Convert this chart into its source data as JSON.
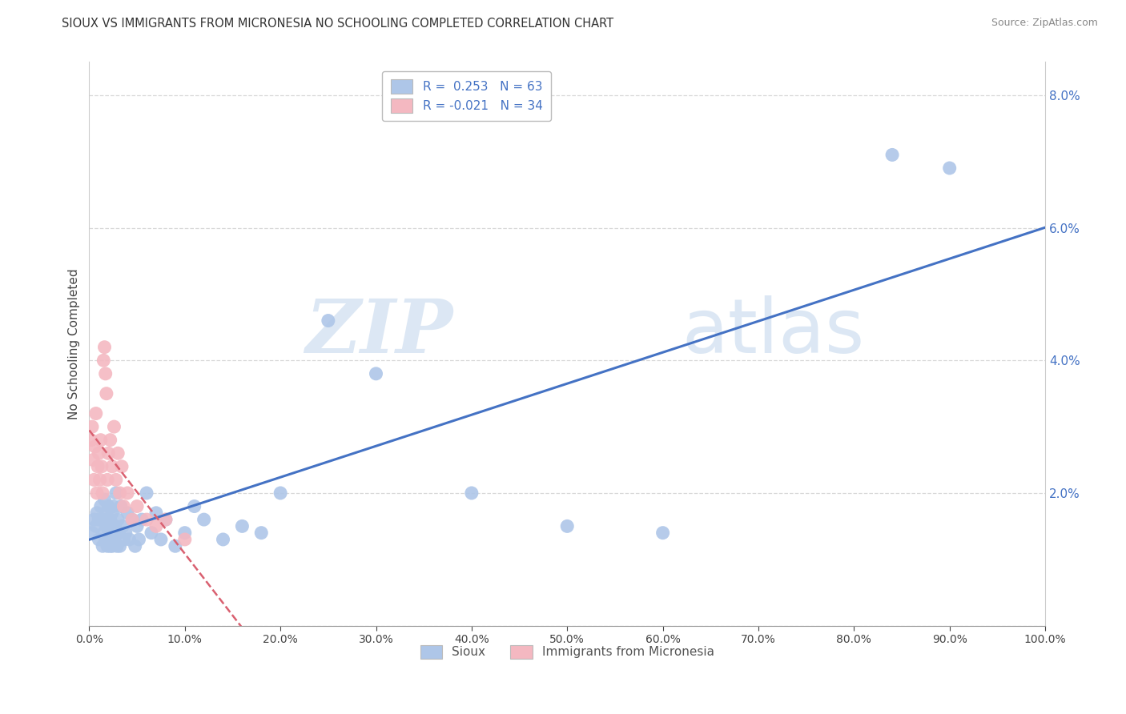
{
  "title": "SIOUX VS IMMIGRANTS FROM MICRONESIA NO SCHOOLING COMPLETED CORRELATION CHART",
  "source": "Source: ZipAtlas.com",
  "ylabel": "No Schooling Completed",
  "xlim": [
    0,
    1.0
  ],
  "ylim": [
    0,
    0.085
  ],
  "xticks": [
    0.0,
    0.1,
    0.2,
    0.3,
    0.4,
    0.5,
    0.6,
    0.7,
    0.8,
    0.9,
    1.0
  ],
  "xticklabels": [
    "0.0%",
    "10.0%",
    "20.0%",
    "30.0%",
    "40.0%",
    "50.0%",
    "60.0%",
    "70.0%",
    "80.0%",
    "90.0%",
    "100.0%"
  ],
  "yticks": [
    0.0,
    0.02,
    0.04,
    0.06,
    0.08
  ],
  "yticklabels": [
    "",
    "2.0%",
    "4.0%",
    "6.0%",
    "8.0%"
  ],
  "legend_r1": "R =  0.253   N = 63",
  "legend_r2": "R = -0.021   N = 34",
  "watermark_zip": "ZIP",
  "watermark_atlas": "atlas",
  "sioux_color": "#aec6e8",
  "micronesia_color": "#f4b8c1",
  "sioux_line_color": "#4472c4",
  "micronesia_line_color": "#d96070",
  "grid_color": "#d8d8d8",
  "background_color": "#ffffff",
  "sioux_x": [
    0.003,
    0.005,
    0.007,
    0.008,
    0.01,
    0.01,
    0.012,
    0.014,
    0.015,
    0.016,
    0.016,
    0.017,
    0.018,
    0.018,
    0.019,
    0.02,
    0.02,
    0.021,
    0.022,
    0.022,
    0.023,
    0.024,
    0.024,
    0.025,
    0.025,
    0.026,
    0.027,
    0.028,
    0.029,
    0.03,
    0.031,
    0.032,
    0.033,
    0.035,
    0.036,
    0.038,
    0.04,
    0.042,
    0.045,
    0.048,
    0.05,
    0.052,
    0.055,
    0.06,
    0.065,
    0.07,
    0.075,
    0.08,
    0.09,
    0.1,
    0.11,
    0.12,
    0.14,
    0.16,
    0.18,
    0.2,
    0.25,
    0.3,
    0.4,
    0.5,
    0.6,
    0.84,
    0.9
  ],
  "sioux_y": [
    0.014,
    0.016,
    0.015,
    0.017,
    0.013,
    0.016,
    0.018,
    0.012,
    0.014,
    0.016,
    0.019,
    0.013,
    0.015,
    0.017,
    0.012,
    0.014,
    0.018,
    0.013,
    0.016,
    0.012,
    0.015,
    0.017,
    0.012,
    0.014,
    0.018,
    0.013,
    0.015,
    0.02,
    0.012,
    0.016,
    0.014,
    0.012,
    0.018,
    0.015,
    0.013,
    0.014,
    0.017,
    0.013,
    0.016,
    0.012,
    0.015,
    0.013,
    0.016,
    0.02,
    0.014,
    0.017,
    0.013,
    0.016,
    0.012,
    0.014,
    0.018,
    0.016,
    0.013,
    0.015,
    0.014,
    0.02,
    0.046,
    0.038,
    0.02,
    0.015,
    0.014,
    0.071,
    0.069
  ],
  "micronesia_x": [
    0.002,
    0.003,
    0.004,
    0.005,
    0.006,
    0.007,
    0.008,
    0.009,
    0.01,
    0.011,
    0.012,
    0.013,
    0.014,
    0.015,
    0.016,
    0.017,
    0.018,
    0.019,
    0.02,
    0.022,
    0.024,
    0.026,
    0.028,
    0.03,
    0.032,
    0.034,
    0.036,
    0.04,
    0.045,
    0.05,
    0.06,
    0.07,
    0.08,
    0.1
  ],
  "micronesia_y": [
    0.028,
    0.03,
    0.025,
    0.022,
    0.027,
    0.032,
    0.02,
    0.024,
    0.026,
    0.022,
    0.028,
    0.024,
    0.02,
    0.04,
    0.042,
    0.038,
    0.035,
    0.022,
    0.026,
    0.028,
    0.024,
    0.03,
    0.022,
    0.026,
    0.02,
    0.024,
    0.018,
    0.02,
    0.016,
    0.018,
    0.016,
    0.015,
    0.016,
    0.013
  ]
}
